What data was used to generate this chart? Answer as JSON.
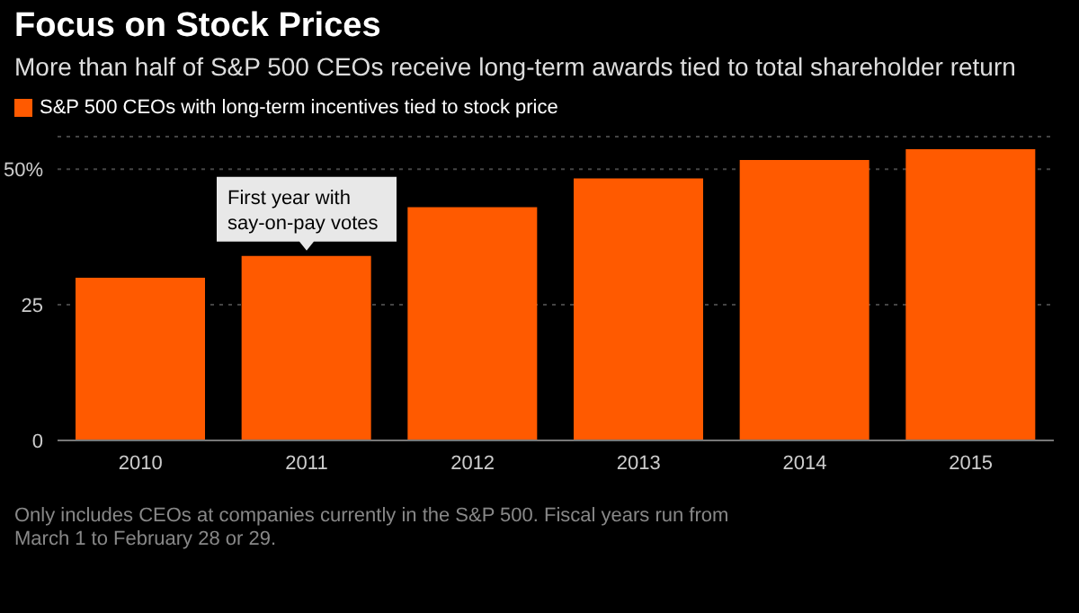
{
  "chart_data": {
    "type": "bar",
    "title": "Focus on Stock Prices",
    "subtitle": "More than half of S&P 500 CEOs receive long-term awards tied to total shareholder return",
    "categories": [
      "2010",
      "2011",
      "2012",
      "2013",
      "2014",
      "2015"
    ],
    "series": [
      {
        "name": "S&P 500 CEOs with long-term incentives tied to stock price",
        "color": "#ff5a00",
        "values": [
          30,
          34,
          43,
          48.3,
          51.7,
          53.7
        ]
      }
    ],
    "ylim": [
      0,
      56
    ],
    "yticks": [
      0,
      25,
      {
        "value": 50,
        "label": "50%"
      }
    ],
    "grid": "y",
    "legend": "top left",
    "annotations": [
      {
        "text": "First year with say-on-pay votes",
        "x": "2011",
        "y": 34
      },
      "Only includes CEOs at companies currently in the S&P 500. Fiscal years run from March 1 to February 28 or 29."
    ]
  }
}
